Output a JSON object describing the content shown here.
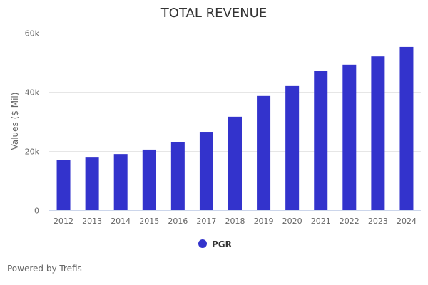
{
  "chart_data": {
    "type": "bar",
    "title": "TOTAL REVENUE",
    "xlabel": "",
    "ylabel": "Values ($ Mil)",
    "ylim": [
      0,
      60000
    ],
    "yticks": [
      0,
      20000,
      40000,
      60000
    ],
    "ytick_labels": [
      "0",
      "20k",
      "40k",
      "60k"
    ],
    "grid": true,
    "categories": [
      "2012",
      "2013",
      "2014",
      "2015",
      "2016",
      "2017",
      "2018",
      "2019",
      "2020",
      "2021",
      "2022",
      "2023",
      "2024"
    ],
    "series": [
      {
        "name": "PGR",
        "color": "#3333cc",
        "values": [
          16900,
          17800,
          19000,
          20500,
          23100,
          26500,
          31600,
          38600,
          42200,
          47200,
          49200,
          52000,
          55200
        ]
      }
    ],
    "legend": "bottom-center"
  },
  "credits": "Powered by Trefis"
}
